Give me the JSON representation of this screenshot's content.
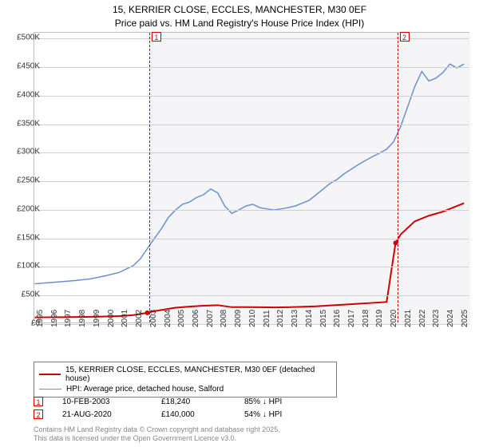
{
  "title_line1": "15, KERRIER CLOSE, ECCLES, MANCHESTER, M30 0EF",
  "title_line2": "Price paid vs. HM Land Registry's House Price Index (HPI)",
  "chart": {
    "type": "line",
    "background_color": "#ffffff",
    "plot_shade_color": "#f5f5f7",
    "grid_color": "#d0d0d0",
    "border_color": "#c0c0c0",
    "x_years": [
      1995,
      1996,
      1997,
      1998,
      1999,
      2000,
      2001,
      2002,
      2003,
      2004,
      2005,
      2006,
      2007,
      2008,
      2009,
      2010,
      2011,
      2012,
      2013,
      2014,
      2015,
      2016,
      2017,
      2018,
      2019,
      2020,
      2021,
      2022,
      2023,
      2024,
      2025
    ],
    "y_ticks": [
      0,
      50000,
      100000,
      150000,
      200000,
      250000,
      300000,
      350000,
      400000,
      450000,
      500000
    ],
    "y_tick_labels": [
      "£0",
      "£50K",
      "£100K",
      "£150K",
      "£200K",
      "£250K",
      "£300K",
      "£350K",
      "£400K",
      "£450K",
      "£500K"
    ],
    "ylim": [
      0,
      510000
    ],
    "series": [
      {
        "name": "HPI: Average price, detached house, Salford",
        "color": "#6a8fd0",
        "line_width": 1.5,
        "data": [
          [
            1995,
            68000
          ],
          [
            1996,
            70000
          ],
          [
            1997,
            72000
          ],
          [
            1998,
            74000
          ],
          [
            1999,
            77000
          ],
          [
            2000,
            82000
          ],
          [
            2001,
            88000
          ],
          [
            2002,
            100000
          ],
          [
            2002.5,
            112000
          ],
          [
            2003,
            130000
          ],
          [
            2003.5,
            148000
          ],
          [
            2004,
            165000
          ],
          [
            2004.5,
            185000
          ],
          [
            2005,
            198000
          ],
          [
            2005.5,
            208000
          ],
          [
            2006,
            212000
          ],
          [
            2006.5,
            220000
          ],
          [
            2007,
            225000
          ],
          [
            2007.5,
            235000
          ],
          [
            2008,
            228000
          ],
          [
            2008.5,
            205000
          ],
          [
            2009,
            192000
          ],
          [
            2009.5,
            198000
          ],
          [
            2010,
            205000
          ],
          [
            2010.5,
            208000
          ],
          [
            2011,
            202000
          ],
          [
            2011.5,
            200000
          ],
          [
            2012,
            198000
          ],
          [
            2012.5,
            200000
          ],
          [
            2013,
            202000
          ],
          [
            2013.5,
            205000
          ],
          [
            2014,
            210000
          ],
          [
            2014.5,
            215000
          ],
          [
            2015,
            225000
          ],
          [
            2015.5,
            235000
          ],
          [
            2016,
            245000
          ],
          [
            2016.5,
            252000
          ],
          [
            2017,
            262000
          ],
          [
            2017.5,
            270000
          ],
          [
            2018,
            278000
          ],
          [
            2018.5,
            285000
          ],
          [
            2019,
            292000
          ],
          [
            2019.5,
            298000
          ],
          [
            2020,
            305000
          ],
          [
            2020.5,
            318000
          ],
          [
            2021,
            345000
          ],
          [
            2021.5,
            380000
          ],
          [
            2022,
            415000
          ],
          [
            2022.5,
            442000
          ],
          [
            2023,
            425000
          ],
          [
            2023.5,
            430000
          ],
          [
            2024,
            440000
          ],
          [
            2024.5,
            455000
          ],
          [
            2025,
            448000
          ],
          [
            2025.5,
            455000
          ]
        ]
      },
      {
        "name": "15, KERRIER CLOSE, ECCLES, MANCHESTER, M30 0EF (detached house)",
        "color": "#cc0000",
        "line_width": 2,
        "data": [
          [
            1995,
            9000
          ],
          [
            1996,
            9200
          ],
          [
            1997,
            9400
          ],
          [
            1998,
            9700
          ],
          [
            1999,
            10000
          ],
          [
            2000,
            10500
          ],
          [
            2001,
            11200
          ],
          [
            2002,
            13000
          ],
          [
            2003,
            17000
          ],
          [
            2003.12,
            18240
          ],
          [
            2004,
            22000
          ],
          [
            2005,
            26000
          ],
          [
            2006,
            28000
          ],
          [
            2007,
            29500
          ],
          [
            2008,
            30500
          ],
          [
            2009,
            27000
          ],
          [
            2010,
            27000
          ],
          [
            2011,
            26800
          ],
          [
            2012,
            26500
          ],
          [
            2013,
            26800
          ],
          [
            2014,
            27500
          ],
          [
            2015,
            28500
          ],
          [
            2016,
            30000
          ],
          [
            2017,
            31500
          ],
          [
            2018,
            33000
          ],
          [
            2019,
            34500
          ],
          [
            2020,
            36000
          ],
          [
            2020.64,
            140000
          ],
          [
            2021,
            155000
          ],
          [
            2022,
            178000
          ],
          [
            2023,
            188000
          ],
          [
            2024,
            195000
          ],
          [
            2025,
            205000
          ],
          [
            2025.5,
            210000
          ]
        ]
      }
    ],
    "markers": [
      {
        "n": "1",
        "x": 2003.12
      },
      {
        "n": "2",
        "x": 2020.64
      }
    ],
    "shade_from_x": 2003.12,
    "label_fontsize": 10
  },
  "legend": {
    "items": [
      {
        "label": "15, KERRIER CLOSE, ECCLES, MANCHESTER, M30 0EF (detached house)",
        "color": "#cc0000",
        "width": 2
      },
      {
        "label": "HPI: Average price, detached house, Salford",
        "color": "#6a8fd0",
        "width": 1.5
      }
    ]
  },
  "transactions": [
    {
      "n": "1",
      "date": "10-FEB-2003",
      "price": "£18,240",
      "pct": "85% ↓ HPI"
    },
    {
      "n": "2",
      "date": "21-AUG-2020",
      "price": "£140,000",
      "pct": "54% ↓ HPI"
    }
  ],
  "attribution_line1": "Contains HM Land Registry data © Crown copyright and database right 2025.",
  "attribution_line2": "This data is licensed under the Open Government Licence v3.0."
}
